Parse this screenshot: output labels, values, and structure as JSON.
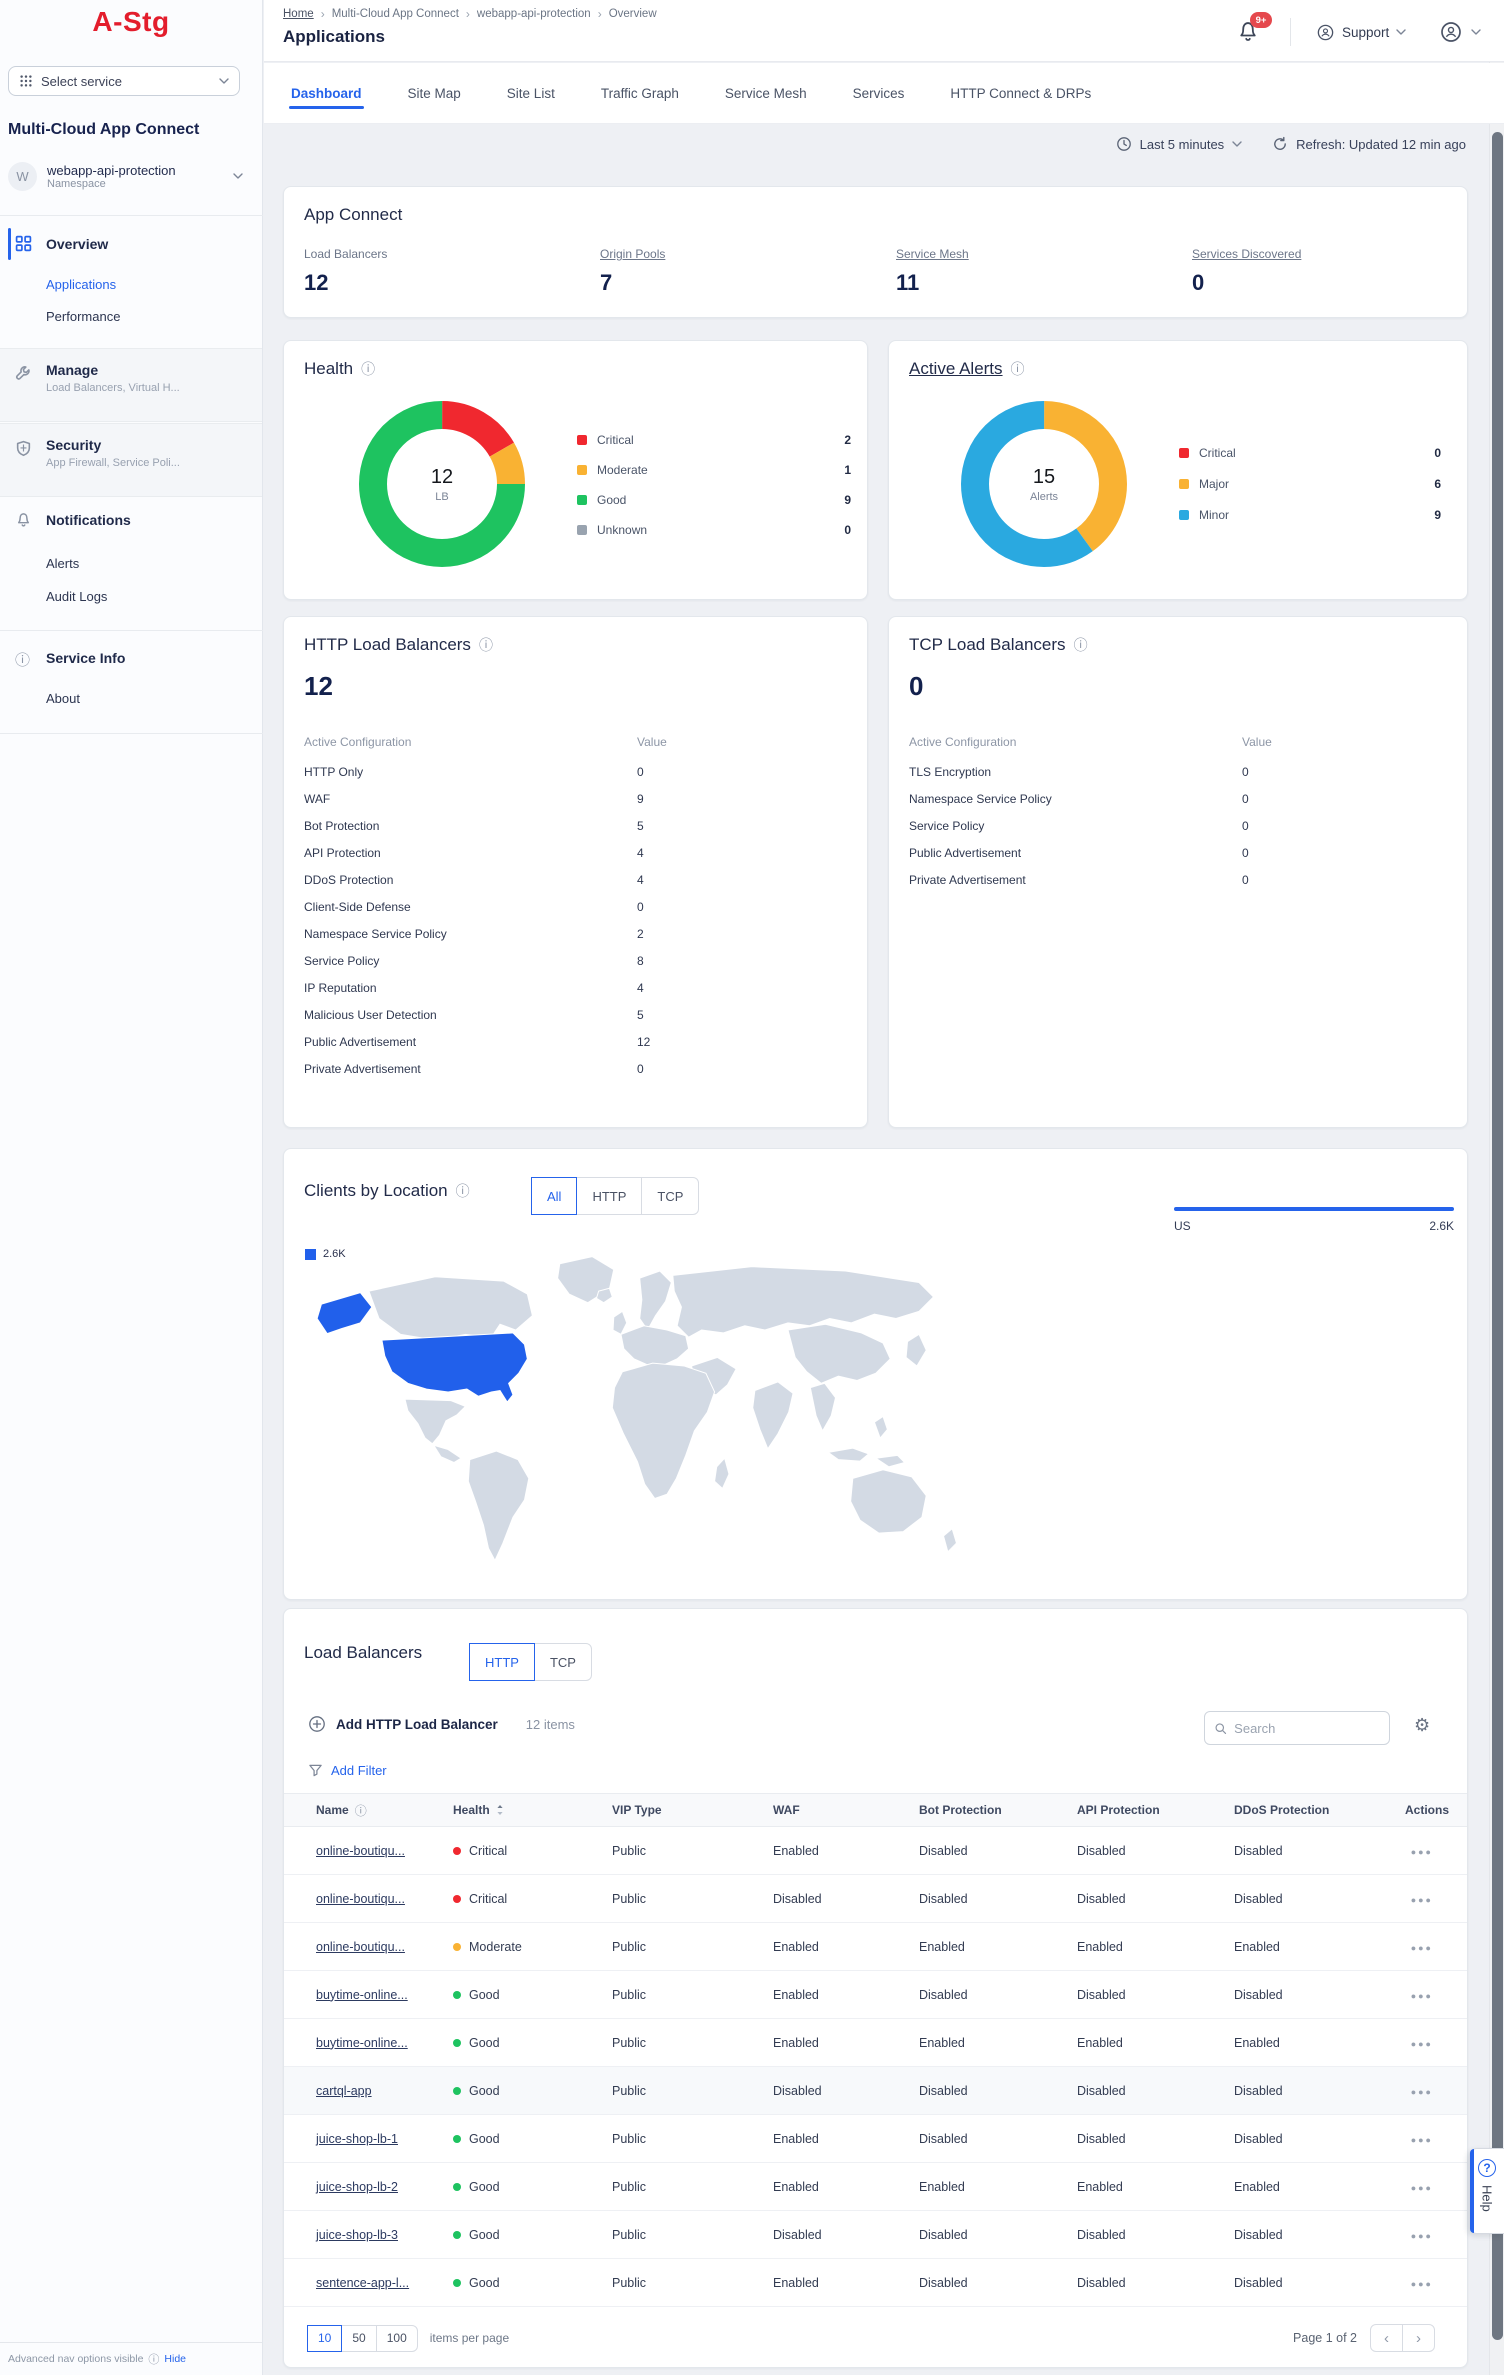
{
  "colors": {
    "accent": "#2563eb",
    "logo": "#e31d2c",
    "badge": "#e5484d",
    "critical": "#f0282f",
    "moderate": "#f9b233",
    "good": "#1ec360",
    "minor": "#2aa9e0",
    "unknown": "#99a3af",
    "map_country": "#d3dae4",
    "map_us": "#2160eb"
  },
  "sidebar": {
    "logo": "A-Stg",
    "select_service": "Select service",
    "product": "Multi-Cloud App Connect",
    "namespace": {
      "initial": "W",
      "name": "webapp-api-protection",
      "type": "Namespace"
    },
    "nav": {
      "overview": {
        "label": "Overview",
        "children": [
          "Applications",
          "Performance"
        ]
      },
      "manage": {
        "label": "Manage",
        "sub": "Load Balancers, Virtual H..."
      },
      "security": {
        "label": "Security",
        "sub": "App Firewall, Service Poli..."
      },
      "notifications": {
        "label": "Notifications",
        "children": [
          "Alerts",
          "Audit Logs"
        ]
      },
      "service_info": {
        "label": "Service Info",
        "children": [
          "About"
        ]
      }
    },
    "footer": {
      "text": "Advanced nav options visible",
      "action": "Hide"
    }
  },
  "header": {
    "breadcrumb": [
      "Home",
      "Multi-Cloud App Connect",
      "webapp-api-protection",
      "Overview"
    ],
    "title": "Applications",
    "bell_badge": "9+",
    "support": "Support"
  },
  "tabs": [
    {
      "label": "Dashboard",
      "cls": "active"
    },
    {
      "label": "Site Map"
    },
    {
      "label": "Site List"
    },
    {
      "label": "Traffic Graph"
    },
    {
      "label": "Service Mesh"
    },
    {
      "label": "Services"
    },
    {
      "label": "HTTP Connect & DRPs"
    }
  ],
  "controls": {
    "range": "Last 5 minutes",
    "refresh": "Refresh: Updated 12 min ago"
  },
  "app_connect": {
    "title": "App Connect",
    "stats": [
      {
        "label": "Load Balancers",
        "value": "12"
      },
      {
        "label": "Origin Pools",
        "value": "7",
        "cls": "link"
      },
      {
        "label": "Service Mesh",
        "value": "11",
        "cls": "link"
      },
      {
        "label": "Services Discovered",
        "value": "0",
        "cls": "link"
      }
    ]
  },
  "health": {
    "title": "Health",
    "center_value": "12",
    "center_label": "LB",
    "legend": [
      {
        "label": "Critical",
        "value": "2",
        "color": "#f0282f"
      },
      {
        "label": "Moderate",
        "value": "1",
        "color": "#f9b233"
      },
      {
        "label": "Good",
        "value": "9",
        "color": "#1ec360"
      },
      {
        "label": "Unknown",
        "value": "0",
        "color": "#99a3af"
      }
    ]
  },
  "active_alerts": {
    "title": "Active Alerts",
    "center_value": "15",
    "center_label": "Alerts",
    "legend": [
      {
        "label": "Critical",
        "value": "0",
        "color": "#f0282f"
      },
      {
        "label": "Major",
        "value": "6",
        "color": "#f9b233"
      },
      {
        "label": "Minor",
        "value": "9",
        "color": "#2aa9e0"
      }
    ]
  },
  "http_lb": {
    "title": "HTTP Load Balancers",
    "count": "12",
    "col_label": "Active Configuration",
    "col_value": "Value",
    "rows": [
      {
        "label": "HTTP Only",
        "value": "0"
      },
      {
        "label": "WAF",
        "value": "9"
      },
      {
        "label": "Bot Protection",
        "value": "5"
      },
      {
        "label": "API Protection",
        "value": "4"
      },
      {
        "label": "DDoS Protection",
        "value": "4"
      },
      {
        "label": "Client-Side Defense",
        "value": "0"
      },
      {
        "label": "Namespace Service Policy",
        "value": "2"
      },
      {
        "label": "Service Policy",
        "value": "8"
      },
      {
        "label": "IP Reputation",
        "value": "4"
      },
      {
        "label": "Malicious User Detection",
        "value": "5"
      },
      {
        "label": "Public Advertisement",
        "value": "12"
      },
      {
        "label": "Private Advertisement",
        "value": "0"
      }
    ]
  },
  "tcp_lb": {
    "title": "TCP Load Balancers",
    "count": "0",
    "col_label": "Active Configuration",
    "col_value": "Value",
    "rows": [
      {
        "label": "TLS Encryption",
        "value": "0"
      },
      {
        "label": "Namespace Service Policy",
        "value": "0"
      },
      {
        "label": "Service Policy",
        "value": "0"
      },
      {
        "label": "Public Advertisement",
        "value": "0"
      },
      {
        "label": "Private Advertisement",
        "value": "0"
      }
    ]
  },
  "clients": {
    "title": "Clients by Location",
    "toggles": [
      {
        "label": "All",
        "cls": "active"
      },
      {
        "label": "HTTP"
      },
      {
        "label": "TCP"
      }
    ],
    "legend_value": "2.6K",
    "top_country": {
      "label": "US",
      "value": "2.6K"
    }
  },
  "lb_table": {
    "title": "Load Balancers",
    "toggles": [
      {
        "label": "HTTP",
        "cls": "active"
      },
      {
        "label": "TCP"
      }
    ],
    "add_button": "Add HTTP Load Balancer",
    "items_count": "12 items",
    "add_filter": "Add Filter",
    "search_placeholder": "Search",
    "columns": [
      "Name",
      "Health",
      "VIP Type",
      "WAF",
      "Bot Protection",
      "API Protection",
      "DDoS Protection",
      "Actions"
    ],
    "rows": [
      {
        "name": "online-boutiqu...",
        "health": "Critical",
        "hc": "#f0282f",
        "vip": "Public",
        "waf": "Enabled",
        "bot": "Disabled",
        "api": "Disabled",
        "ddos": "Disabled"
      },
      {
        "name": "online-boutiqu...",
        "health": "Critical",
        "hc": "#f0282f",
        "vip": "Public",
        "waf": "Disabled",
        "bot": "Disabled",
        "api": "Disabled",
        "ddos": "Disabled"
      },
      {
        "name": "online-boutiqu...",
        "health": "Moderate",
        "hc": "#f9b233",
        "vip": "Public",
        "waf": "Enabled",
        "bot": "Enabled",
        "api": "Enabled",
        "ddos": "Enabled"
      },
      {
        "name": "buytime-online...",
        "health": "Good",
        "hc": "#1ec360",
        "vip": "Public",
        "waf": "Enabled",
        "bot": "Disabled",
        "api": "Disabled",
        "ddos": "Disabled"
      },
      {
        "name": "buytime-online...",
        "health": "Good",
        "hc": "#1ec360",
        "vip": "Public",
        "waf": "Enabled",
        "bot": "Enabled",
        "api": "Enabled",
        "ddos": "Enabled"
      },
      {
        "name": "cartql-app",
        "health": "Good",
        "hc": "#1ec360",
        "vip": "Public",
        "waf": "Disabled",
        "bot": "Disabled",
        "api": "Disabled",
        "ddos": "Disabled",
        "cls": "shaded"
      },
      {
        "name": "juice-shop-lb-1",
        "health": "Good",
        "hc": "#1ec360",
        "vip": "Public",
        "waf": "Enabled",
        "bot": "Disabled",
        "api": "Disabled",
        "ddos": "Disabled"
      },
      {
        "name": "juice-shop-lb-2",
        "health": "Good",
        "hc": "#1ec360",
        "vip": "Public",
        "waf": "Enabled",
        "bot": "Enabled",
        "api": "Enabled",
        "ddos": "Enabled"
      },
      {
        "name": "juice-shop-lb-3",
        "health": "Good",
        "hc": "#1ec360",
        "vip": "Public",
        "waf": "Disabled",
        "bot": "Disabled",
        "api": "Disabled",
        "ddos": "Disabled"
      },
      {
        "name": "sentence-app-l...",
        "health": "Good",
        "hc": "#1ec360",
        "vip": "Public",
        "waf": "Enabled",
        "bot": "Disabled",
        "api": "Disabled",
        "ddos": "Disabled"
      }
    ],
    "pagination": {
      "sizes": [
        {
          "label": "10",
          "cls": "active"
        },
        {
          "label": "50"
        },
        {
          "label": "100"
        }
      ],
      "per_page_label": "items per page",
      "page_status": "Page 1 of 2"
    }
  },
  "help_tab": "Help",
  "chart_data": [
    {
      "type": "pie",
      "title": "Health",
      "center_text": "12 LB",
      "labels": [
        "Critical",
        "Moderate",
        "Good",
        "Unknown"
      ],
      "values": [
        2,
        1,
        9,
        0
      ],
      "colors": [
        "#f0282f",
        "#f9b233",
        "#1ec360",
        "#99a3af"
      ],
      "legend_position": "right"
    },
    {
      "type": "pie",
      "title": "Active Alerts",
      "center_text": "15 Alerts",
      "labels": [
        "Critical",
        "Major",
        "Minor"
      ],
      "values": [
        0,
        6,
        9
      ],
      "colors": [
        "#f0282f",
        "#f9b233",
        "#2aa9e0"
      ],
      "legend_position": "right"
    },
    {
      "type": "bar",
      "title": "Clients by Location",
      "orientation": "horizontal",
      "categories": [
        "US"
      ],
      "values": [
        2600
      ],
      "value_labels": [
        "2.6K"
      ]
    }
  ]
}
